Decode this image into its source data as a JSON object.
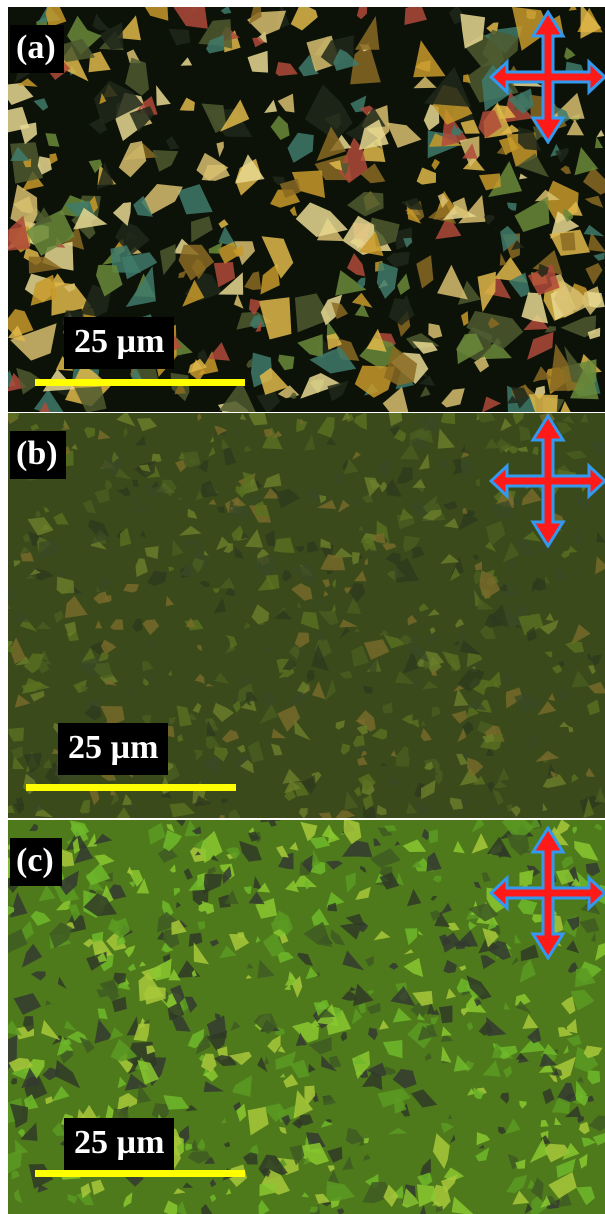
{
  "panels": [
    {
      "label": "(a)",
      "scale_text": "25 µm"
    },
    {
      "label": "(b)",
      "scale_text": "25 µm"
    },
    {
      "label": "(c)",
      "scale_text": "25 µm"
    }
  ],
  "colors": {
    "scale_bar": "#ffff00",
    "arrow_fill": "#ff1a1a",
    "arrow_outline": "#3399ee",
    "panel_a_base": "#0d1208",
    "panel_b_base": "#3a4a1a",
    "panel_c_base": "#4f7a1c"
  },
  "icons": [
    "crossed-polarizer-arrows-icon"
  ]
}
